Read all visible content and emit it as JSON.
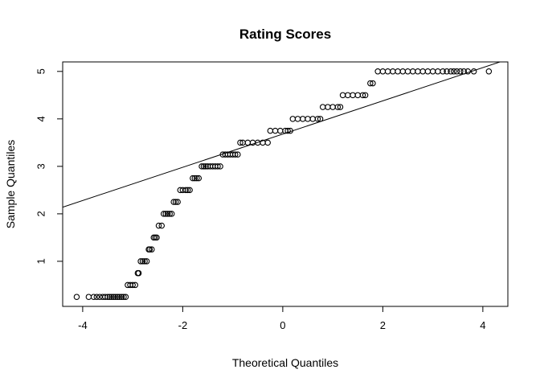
{
  "chart_data": {
    "type": "scatter",
    "title": "Rating Scores",
    "xlabel": "Theoretical Quantiles",
    "ylabel": "Sample Quantiles",
    "xlim": [
      -4.4,
      4.5
    ],
    "ylim": [
      0.05,
      5.2
    ],
    "x_ticks": [
      -4,
      -2,
      0,
      2,
      4
    ],
    "y_ticks": [
      1,
      2,
      3,
      4,
      5
    ],
    "x_tick_labels": [
      "-4",
      "-2",
      "0",
      "2",
      "4"
    ],
    "y_tick_labels": [
      "1",
      "2",
      "3",
      "4",
      "5"
    ],
    "grid": false,
    "legend": "none",
    "point_style": "open-circle",
    "point_color": "#000000",
    "reference_line": {
      "slope": 0.35,
      "intercept": 3.68
    },
    "series": [
      {
        "x": [
          -4.12,
          -3.88,
          -3.78,
          -3.72,
          -3.66,
          -3.6,
          -3.55,
          -3.5,
          -3.46,
          -3.42,
          -3.38,
          -3.34,
          -3.3,
          -3.26,
          -3.22,
          -3.18,
          -3.14,
          -3.1,
          -3.05,
          -3.0,
          -2.95,
          -2.9,
          -2.88,
          -2.84,
          -2.8,
          -2.76,
          -2.72,
          -2.68,
          -2.66,
          -2.62,
          -2.58,
          -2.55,
          -2.52,
          -2.48,
          -2.42,
          -2.38,
          -2.34,
          -2.3,
          -2.26,
          -2.22,
          -2.18,
          -2.14,
          -2.1,
          -2.05,
          -2.0,
          -1.94,
          -1.9,
          -1.86,
          -1.8,
          -1.76,
          -1.72,
          -1.68,
          -1.62,
          -1.58,
          -1.54,
          -1.5,
          -1.45,
          -1.4,
          -1.35,
          -1.3,
          -1.25,
          -1.2,
          -1.15,
          -1.1,
          -1.05,
          -1.0,
          -0.95,
          -0.9,
          -0.85,
          -0.8,
          -0.7,
          -0.6,
          -0.5,
          -0.4,
          -0.3,
          -0.25,
          -0.15,
          -0.05,
          0.05,
          0.1,
          0.15,
          0.2,
          0.3,
          0.4,
          0.5,
          0.6,
          0.7,
          0.75,
          0.8,
          0.9,
          1.0,
          1.1,
          1.15,
          1.2,
          1.3,
          1.4,
          1.5,
          1.6,
          1.65,
          1.75,
          1.8,
          1.9,
          2.0,
          2.1,
          2.2,
          2.3,
          2.4,
          2.5,
          2.6,
          2.7,
          2.8,
          2.9,
          3.0,
          3.1,
          3.2,
          3.28,
          3.36,
          3.42,
          3.48,
          3.55,
          3.62,
          3.7,
          3.82,
          4.12
        ],
        "y": [
          0.25,
          0.25,
          0.25,
          0.25,
          0.25,
          0.25,
          0.25,
          0.25,
          0.25,
          0.25,
          0.25,
          0.25,
          0.25,
          0.25,
          0.25,
          0.25,
          0.25,
          0.5,
          0.5,
          0.5,
          0.5,
          0.75,
          0.75,
          1.0,
          1.0,
          1.0,
          1.0,
          1.25,
          1.25,
          1.25,
          1.5,
          1.5,
          1.5,
          1.75,
          1.75,
          2.0,
          2.0,
          2.0,
          2.0,
          2.0,
          2.25,
          2.25,
          2.25,
          2.5,
          2.5,
          2.5,
          2.5,
          2.5,
          2.75,
          2.75,
          2.75,
          2.75,
          3.0,
          3.0,
          3.0,
          3.0,
          3.0,
          3.0,
          3.0,
          3.0,
          3.0,
          3.25,
          3.25,
          3.25,
          3.25,
          3.25,
          3.25,
          3.25,
          3.5,
          3.5,
          3.5,
          3.5,
          3.5,
          3.5,
          3.5,
          3.75,
          3.75,
          3.75,
          3.75,
          3.75,
          3.75,
          4.0,
          4.0,
          4.0,
          4.0,
          4.0,
          4.0,
          4.0,
          4.25,
          4.25,
          4.25,
          4.25,
          4.25,
          4.5,
          4.5,
          4.5,
          4.5,
          4.5,
          4.5,
          4.75,
          4.75,
          5.0,
          5.0,
          5.0,
          5.0,
          5.0,
          5.0,
          5.0,
          5.0,
          5.0,
          5.0,
          5.0,
          5.0,
          5.0,
          5.0,
          5.0,
          5.0,
          5.0,
          5.0,
          5.0,
          5.0,
          5.0,
          5.0,
          5.0
        ]
      }
    ]
  }
}
